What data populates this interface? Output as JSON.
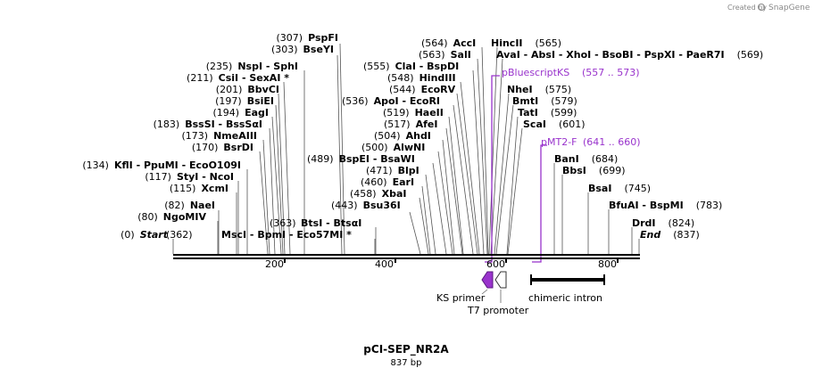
{
  "credit": {
    "prefix": "Created by",
    "brand": "SnapGene"
  },
  "map": {
    "name": "pCI-SEP_NR2A",
    "length_label": "837 bp",
    "length": 837
  },
  "ticks": [
    "200",
    "400",
    "600",
    "800"
  ],
  "sites": [
    {
      "pos": "(0)",
      "names": [
        "Start"
      ],
      "italic": true
    },
    {
      "pos": "(80)",
      "names": [
        "NgoMIV"
      ]
    },
    {
      "pos": "(82)",
      "names": [
        "NaeI"
      ]
    },
    {
      "pos": "(115)",
      "names": [
        "XcmI"
      ]
    },
    {
      "pos": "(117)",
      "names": [
        "StyI",
        "NcoI"
      ]
    },
    {
      "pos": "(134)",
      "names": [
        "KflI",
        "PpuMI",
        "EcoO109I"
      ]
    },
    {
      "pos": "(170)",
      "names": [
        "BsrDI"
      ]
    },
    {
      "pos": "(173)",
      "names": [
        "NmeAIII"
      ]
    },
    {
      "pos": "(183)",
      "names": [
        "BssSI",
        "BssSαI"
      ]
    },
    {
      "pos": "(194)",
      "names": [
        "EagI"
      ]
    },
    {
      "pos": "(197)",
      "names": [
        "BsiEI"
      ]
    },
    {
      "pos": "(201)",
      "names": [
        "BbvCI"
      ]
    },
    {
      "pos": "(211)",
      "names": [
        "CsiI",
        "SexAI *"
      ]
    },
    {
      "pos": "(235)",
      "names": [
        "NspI",
        "SphI"
      ]
    },
    {
      "pos": "(303)",
      "names": [
        "BseYI"
      ]
    },
    {
      "pos": "(307)",
      "names": [
        "PspFI"
      ]
    },
    {
      "pos": "(362)",
      "names": [
        "MscI",
        "BpmI",
        "Eco57MI *"
      ],
      "pos_right": "(363)"
    },
    {
      "pos": "(363)",
      "names": [
        "BtsI",
        "BtsαI"
      ]
    },
    {
      "pos": "(443)",
      "names": [
        "Bsu36I"
      ]
    },
    {
      "pos": "(458)",
      "names": [
        "XbaI"
      ]
    },
    {
      "pos": "(460)",
      "names": [
        "EarI"
      ]
    },
    {
      "pos": "(471)",
      "names": [
        "BlpI"
      ]
    },
    {
      "pos": "(489)",
      "names": [
        "BspEI",
        "BsaWI"
      ]
    },
    {
      "pos": "(500)",
      "names": [
        "AlwNI"
      ]
    },
    {
      "pos": "(504)",
      "names": [
        "AhdI"
      ]
    },
    {
      "pos": "(517)",
      "names": [
        "AfeI"
      ]
    },
    {
      "pos": "(519)",
      "names": [
        "HaeII"
      ]
    },
    {
      "pos": "(536)",
      "names": [
        "ApoI",
        "EcoRI"
      ]
    },
    {
      "pos": "(544)",
      "names": [
        "EcoRV"
      ]
    },
    {
      "pos": "(548)",
      "names": [
        "HindIII"
      ]
    },
    {
      "pos": "(555)",
      "names": [
        "ClaI",
        "BspDI"
      ]
    },
    {
      "pos": "(563)",
      "names": [
        "SalI"
      ]
    },
    {
      "pos": "(564)",
      "names": [
        "AccI"
      ]
    },
    {
      "pos": "(565)",
      "names": [
        "HincII"
      ]
    },
    {
      "pos": "(569)",
      "names": [
        "AvaI",
        "AbsI",
        "XhoI",
        "BsoBI",
        "PspXI",
        "PaeR7I"
      ]
    },
    {
      "pos": "(575)",
      "names": [
        "NheI"
      ]
    },
    {
      "pos": "(579)",
      "names": [
        "BmtI"
      ]
    },
    {
      "pos": "(599)",
      "names": [
        "TatI"
      ]
    },
    {
      "pos": "(601)",
      "names": [
        "ScaI"
      ]
    },
    {
      "pos": "(684)",
      "names": [
        "BanI"
      ]
    },
    {
      "pos": "(699)",
      "names": [
        "BbsI"
      ]
    },
    {
      "pos": "(745)",
      "names": [
        "BsaI"
      ]
    },
    {
      "pos": "(783)",
      "names": [
        "BfuAI",
        "BspMI"
      ]
    },
    {
      "pos": "(824)",
      "names": [
        "DrdI"
      ]
    },
    {
      "pos": "(837)",
      "names": [
        "End"
      ],
      "italic": true
    }
  ],
  "primers": [
    {
      "name": "pBluescriptKS",
      "range": "(557 .. 573)"
    },
    {
      "name": "pMT2-F",
      "range": "(641 .. 660)"
    }
  ],
  "features": [
    {
      "name": "KS primer"
    },
    {
      "name": "T7 promoter"
    },
    {
      "name": "chimeric intron"
    }
  ],
  "colors": {
    "primer": "#9933cc",
    "feature_fill": "#9933cc",
    "backbone": "#000000"
  }
}
